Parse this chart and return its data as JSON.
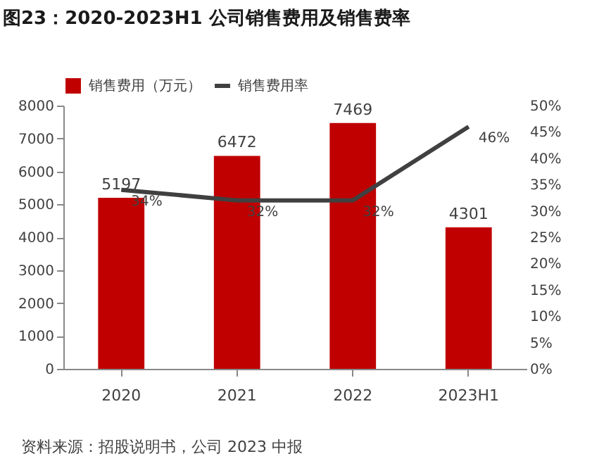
{
  "chart_data": {
    "type": "bar",
    "title": "图23：2020-2023H1 公司销售费用及销售费率",
    "categories": [
      "2020",
      "2021",
      "2022",
      "2023H1"
    ],
    "series": [
      {
        "name": "销售费用（万元）",
        "color": "#c00000",
        "values": [
          5197,
          6472,
          7469,
          4301
        ],
        "value_labels": [
          "5197",
          "6472",
          "7469",
          "4301"
        ]
      },
      {
        "name": "销售费用率",
        "type": "line",
        "axis": "y2",
        "color": "#404040",
        "values": [
          34,
          32,
          32,
          46
        ],
        "value_labels": [
          "34%",
          "32%",
          "32%",
          "46%"
        ]
      }
    ],
    "ylim": [
      0,
      8000
    ],
    "yticks": [
      0,
      1000,
      2000,
      3000,
      4000,
      5000,
      6000,
      7000,
      8000
    ],
    "y2lim": [
      0,
      50
    ],
    "y2ticks": [
      {
        "value": 0,
        "label": "0%"
      },
      {
        "value": 5,
        "label": "5%"
      },
      {
        "value": 10,
        "label": "10%"
      },
      {
        "value": 15,
        "label": "15%"
      },
      {
        "value": 20,
        "label": "20%"
      },
      {
        "value": 25,
        "label": "25%"
      },
      {
        "value": 30,
        "label": "30%"
      },
      {
        "value": 35,
        "label": "35%"
      },
      {
        "value": 40,
        "label": "40%"
      },
      {
        "value": 45,
        "label": "45%"
      },
      {
        "value": 50,
        "label": "50%"
      }
    ],
    "grid": false,
    "legend": "top",
    "marker": "none",
    "line_style": "solid",
    "annotations": [
      "资料来源：招股说明书，公司 2023 中报"
    ]
  }
}
